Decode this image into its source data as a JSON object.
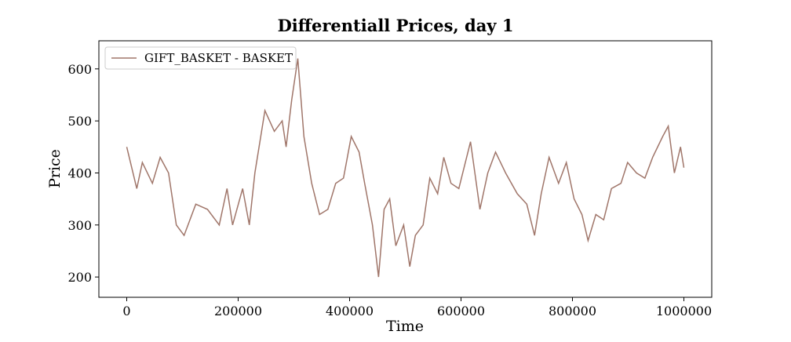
{
  "chart_data": {
    "type": "line",
    "title": "Differentiall Prices, day 1",
    "x_label": "Time",
    "y_label": "Price",
    "x": [
      0,
      18000,
      28000,
      46000,
      60000,
      75000,
      89000,
      103000,
      124000,
      145000,
      166000,
      180000,
      190000,
      208000,
      220000,
      230000,
      248000,
      265000,
      279000,
      286000,
      296000,
      307000,
      318000,
      332000,
      346000,
      361000,
      375000,
      389000,
      403000,
      417000,
      427000,
      441000,
      452000,
      462000,
      472000,
      483000,
      497000,
      508000,
      518000,
      532000,
      544000,
      558000,
      569000,
      582000,
      596000,
      617000,
      634000,
      648000,
      662000,
      680000,
      701000,
      718000,
      732000,
      744000,
      758000,
      775000,
      789000,
      803000,
      817000,
      828000,
      842000,
      856000,
      870000,
      887000,
      899000,
      915000,
      930000,
      944000,
      962000,
      972000,
      983000,
      994000,
      1000000
    ],
    "series": [
      {
        "name": "GIFT_BASKET - BASKET",
        "color": "#a0766a",
        "values": [
          450,
          370,
          420,
          380,
          430,
          400,
          300,
          280,
          340,
          330,
          300,
          370,
          300,
          370,
          300,
          400,
          520,
          480,
          500,
          450,
          540,
          620,
          470,
          380,
          320,
          330,
          380,
          390,
          470,
          440,
          380,
          300,
          200,
          330,
          350,
          260,
          300,
          220,
          280,
          300,
          390,
          360,
          430,
          380,
          370,
          460,
          330,
          400,
          440,
          400,
          360,
          340,
          280,
          360,
          430,
          380,
          420,
          350,
          320,
          270,
          320,
          310,
          370,
          380,
          420,
          400,
          390,
          430,
          470,
          490,
          400,
          450,
          410
        ]
      }
    ],
    "xlim": [
      -50000,
      1050000
    ],
    "ylim": [
      161,
      654
    ],
    "xticks": [
      0,
      200000,
      400000,
      600000,
      800000,
      1000000
    ],
    "yticks": [
      200,
      300,
      400,
      500,
      600
    ],
    "legend": "upper left"
  }
}
